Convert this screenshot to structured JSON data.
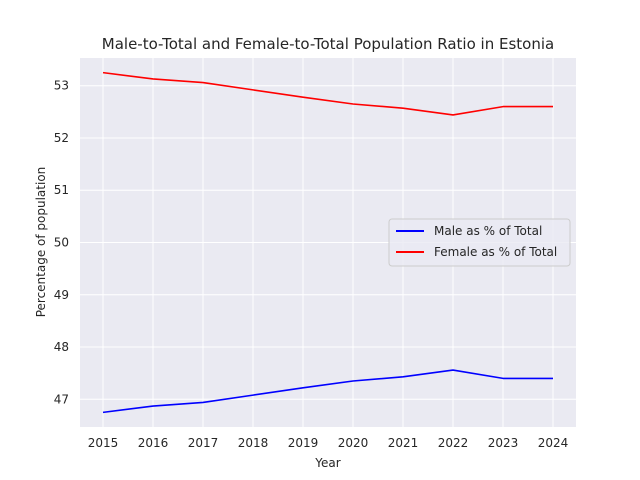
{
  "chart_data": {
    "type": "line",
    "title": "Male-to-Total and Female-to-Total Population Ratio in Estonia",
    "xlabel": "Year",
    "ylabel": "Percentage of population",
    "x": [
      "2015",
      "2016",
      "2017",
      "2018",
      "2019",
      "2020",
      "2021",
      "2022",
      "2023",
      "2024"
    ],
    "y_ticks": [
      "47",
      "48",
      "49",
      "50",
      "51",
      "52",
      "53"
    ],
    "ylim": [
      46.47,
      53.53
    ],
    "grid": true,
    "legend_position": "center-right",
    "series": [
      {
        "name": "Male as % of Total",
        "color": "#0000ff",
        "values": [
          46.75,
          46.87,
          46.94,
          47.08,
          47.22,
          47.35,
          47.43,
          47.56,
          47.4,
          47.4
        ]
      },
      {
        "name": "Female as % of Total",
        "color": "#ff0000",
        "values": [
          53.25,
          53.13,
          53.06,
          52.92,
          52.78,
          52.65,
          52.57,
          52.44,
          52.6,
          52.6
        ]
      }
    ],
    "background_color": "#eaeaf2",
    "grid_color": "#ffffff"
  }
}
